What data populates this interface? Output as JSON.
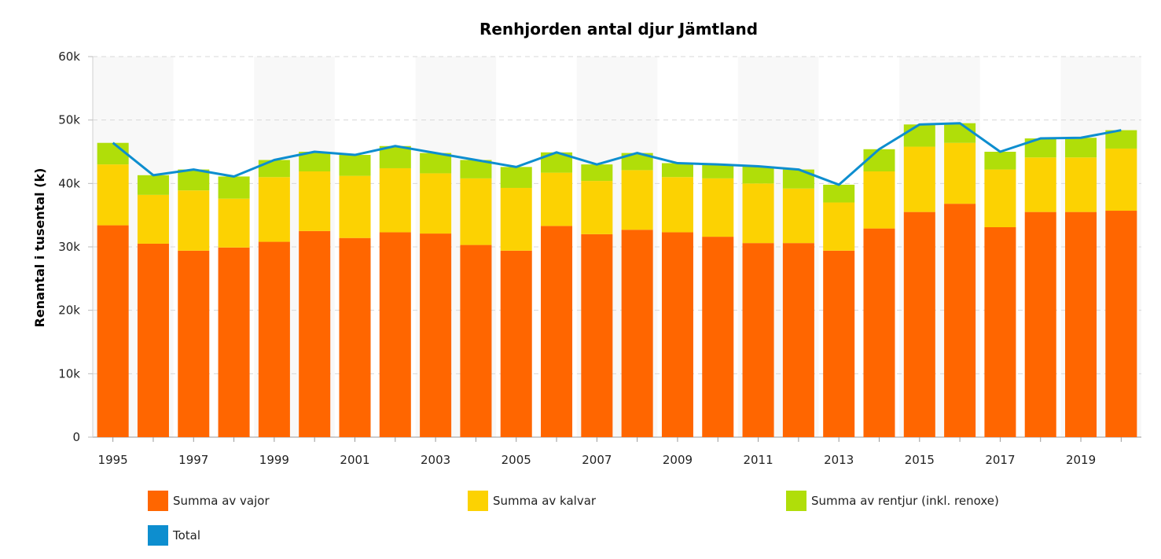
{
  "chart_data": {
    "type": "bar",
    "stacked": true,
    "title": "Renhjorden antal djur Jämtland",
    "xlabel": "",
    "ylabel": "Renantal i tusental (k)",
    "ylim": [
      0,
      60000
    ],
    "yticks": [
      "0",
      "10k",
      "20k",
      "30k",
      "40k",
      "50k",
      "60k"
    ],
    "ytick_values": [
      0,
      10000,
      20000,
      30000,
      40000,
      50000,
      60000
    ],
    "categories": [
      1995,
      1996,
      1997,
      1998,
      1999,
      2000,
      2001,
      2002,
      2003,
      2004,
      2005,
      2006,
      2007,
      2008,
      2009,
      2010,
      2011,
      2012,
      2013,
      2014,
      2015,
      2016,
      2017,
      2018,
      2019,
      2020
    ],
    "xtick_labels": [
      "1995",
      "1997",
      "1999",
      "2001",
      "2003",
      "2005",
      "2007",
      "2009",
      "2011",
      "2013",
      "2015",
      "2017",
      "2019"
    ],
    "series": [
      {
        "name": "Summa av vajor",
        "color": "#ff6600",
        "values": [
          33400,
          30500,
          29400,
          29900,
          30800,
          32500,
          31400,
          32300,
          32100,
          30300,
          29400,
          33300,
          32000,
          32700,
          32300,
          31600,
          30600,
          30600,
          29400,
          32900,
          35500,
          36800,
          33100,
          35500,
          35500,
          35700
        ]
      },
      {
        "name": "Summa av kalvar",
        "color": "#fcd202",
        "values": [
          9600,
          7700,
          9500,
          7700,
          10200,
          9400,
          9800,
          10100,
          9500,
          10500,
          9900,
          8400,
          8400,
          9400,
          8700,
          9200,
          9400,
          8600,
          7600,
          9000,
          10300,
          9600,
          9100,
          8600,
          8600,
          9800
        ]
      },
      {
        "name": "Summa av rentjur (inkl. renoxe)",
        "color": "#b0de09",
        "values": [
          3400,
          3100,
          3300,
          3500,
          2700,
          3100,
          3300,
          3500,
          3200,
          2900,
          3300,
          3200,
          2600,
          2700,
          2200,
          2200,
          2700,
          3000,
          2800,
          3500,
          3500,
          3100,
          2800,
          3000,
          3100,
          2900
        ]
      },
      {
        "name": "Total",
        "color": "#0d8ecf",
        "type": "line",
        "values": [
          46400,
          41300,
          42200,
          41100,
          43700,
          45000,
          44500,
          45900,
          44800,
          43700,
          42600,
          44900,
          43000,
          44800,
          43200,
          43000,
          42700,
          42200,
          39800,
          45400,
          49300,
          49500,
          45000,
          47100,
          47200,
          48400
        ]
      }
    ],
    "legend_position": "bottom"
  }
}
